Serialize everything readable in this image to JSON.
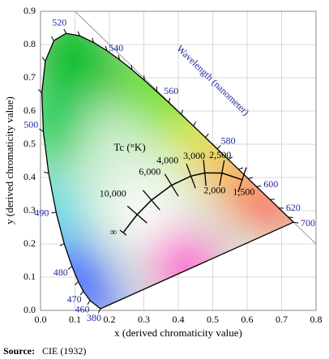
{
  "chart_data": {
    "type": "chromaticity",
    "xlabel": "x (derived chromaticity value)",
    "ylabel": "y (derived chromaticity value)",
    "xlim": [
      0,
      0.8
    ],
    "ylim": [
      0,
      0.9
    ],
    "xticks": [
      {
        "value": 0,
        "label": "0.0"
      },
      0.1,
      0.2,
      0.3,
      0.4,
      0.5,
      0.6,
      0.7,
      0.8
    ],
    "yticks": [
      {
        "value": 0,
        "label": "0.0"
      },
      0.1,
      0.2,
      0.3,
      0.4,
      0.5,
      0.6,
      0.7,
      0.8,
      0.9
    ],
    "grid": true,
    "locus_label": "Wavelength (nanometer)",
    "spectral_locus": {
      "color": "#1c2a9c",
      "wavelengths": [
        "380",
        "460",
        "470",
        null,
        "480",
        null,
        "490",
        null,
        "500",
        null,
        null,
        null,
        "520",
        null,
        null,
        null,
        "540",
        null,
        null,
        null,
        "560",
        null,
        null,
        null,
        "580",
        null,
        null,
        null,
        "600",
        null,
        "620",
        null,
        "700"
      ],
      "x": [
        0.1741,
        0.144,
        0.1241,
        0.1096,
        0.0913,
        0.0687,
        0.0454,
        0.0235,
        0.0082,
        0.0039,
        0.0139,
        0.0389,
        0.0743,
        0.1142,
        0.1547,
        0.1929,
        0.2296,
        0.2658,
        0.3016,
        0.3373,
        0.3731,
        0.4087,
        0.4441,
        0.4788,
        0.5125,
        0.5448,
        0.5752,
        0.6029,
        0.627,
        0.6658,
        0.6915,
        0.719,
        0.7347
      ],
      "y": [
        0.005,
        0.0297,
        0.0578,
        0.0868,
        0.1327,
        0.2007,
        0.295,
        0.4127,
        0.5384,
        0.6548,
        0.7502,
        0.812,
        0.8338,
        0.8262,
        0.8059,
        0.7816,
        0.7543,
        0.7243,
        0.6923,
        0.6589,
        0.6245,
        0.5896,
        0.5547,
        0.5202,
        0.4866,
        0.4544,
        0.4242,
        0.3965,
        0.3725,
        0.334,
        0.3083,
        0.2809,
        0.2653
      ]
    },
    "planckian_locus": {
      "title": "Tc (°K)",
      "color": "#000000",
      "labels": [
        "∞",
        "10,000",
        "6,000",
        "4,000",
        "3,000",
        "2,500",
        "2,000",
        "1,500"
      ],
      "x": [
        0.24,
        0.2807,
        0.3221,
        0.3805,
        0.4369,
        0.477,
        0.5267,
        0.5857
      ],
      "y": [
        0.234,
        0.2884,
        0.3318,
        0.3768,
        0.4041,
        0.4137,
        0.4133,
        0.3931
      ]
    }
  },
  "source_label": "Source:",
  "source": "CIE (1932)"
}
